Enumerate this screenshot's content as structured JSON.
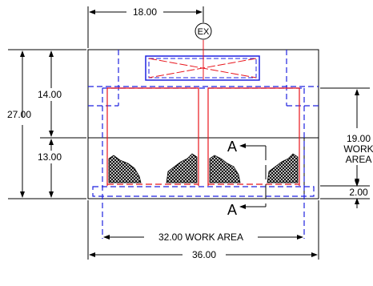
{
  "labels": {
    "ex": "EX",
    "section": "A"
  },
  "dimensions": {
    "top_width": "18.00",
    "height_upper": "14.00",
    "height_total": "27.00",
    "height_lower": "13.00",
    "work_height": "19.00",
    "work_height_line1": "WORK",
    "work_height_line2": "AREA",
    "base_height": "2.00",
    "work_width": "32.00  WORK  AREA",
    "total_width": "36.00"
  },
  "colors": {
    "outline": "#000000",
    "red": "#e8141c",
    "blue": "#1f22e0",
    "hatch": "#111111"
  }
}
